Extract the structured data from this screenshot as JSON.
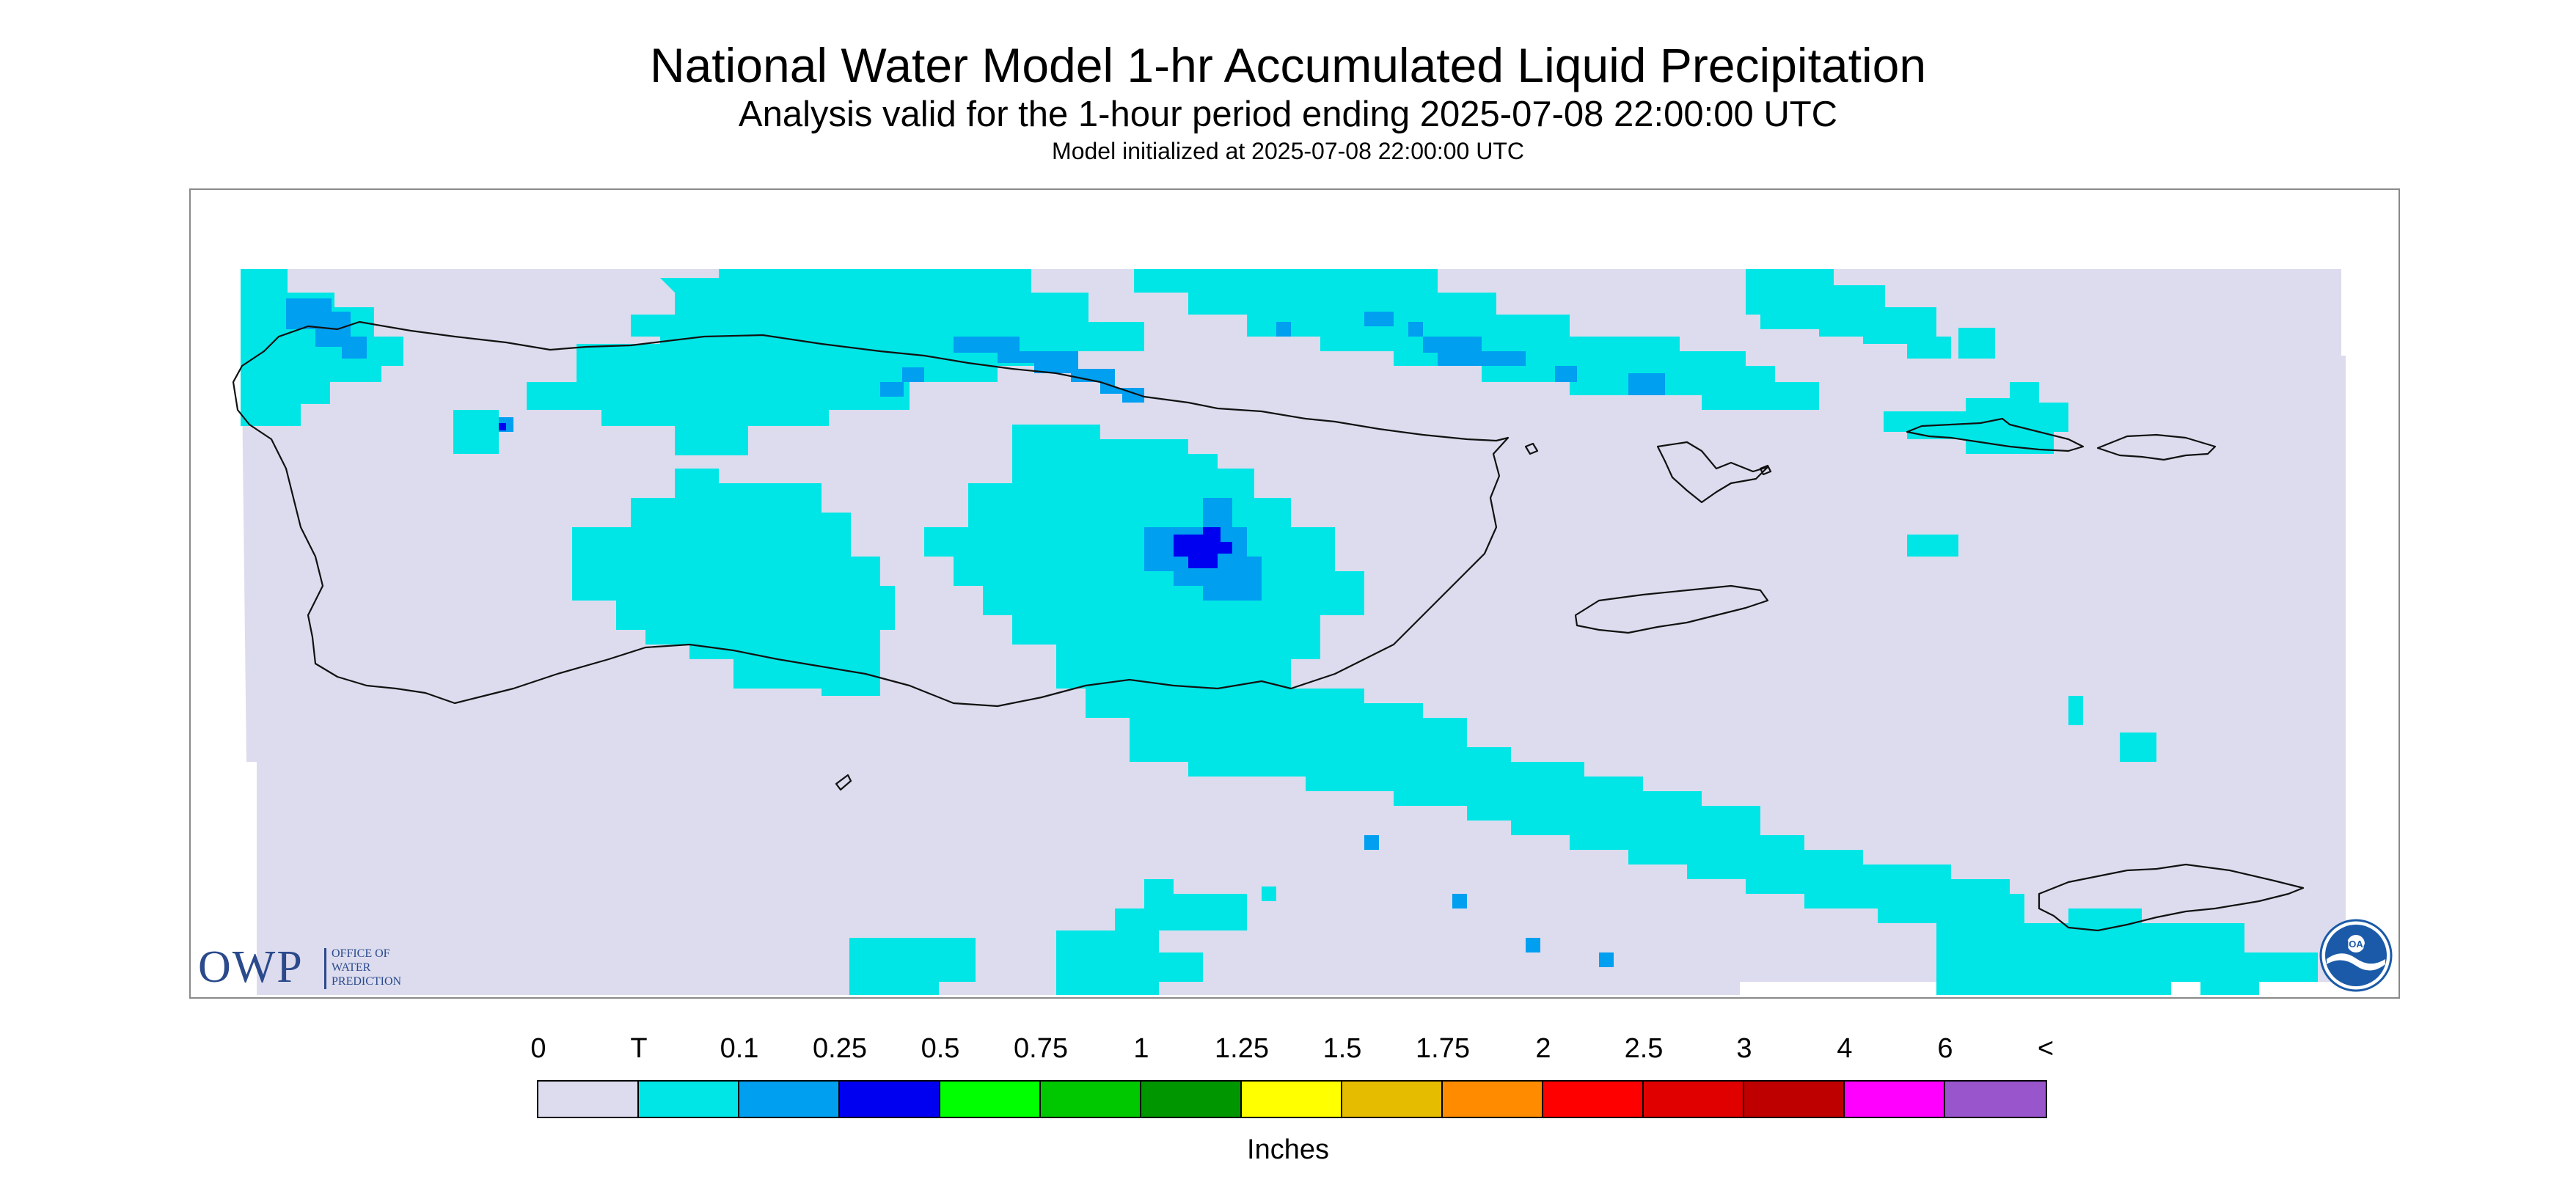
{
  "title": "National Water Model 1-hr Accumulated Liquid Precipitation",
  "subtitle": "Analysis valid for the 1-hour period ending 2025-07-08 22:00:00 UTC",
  "init_line": "Model initialized at 2025-07-08 22:00:00 UTC",
  "colors": {
    "background": "#dcdcee",
    "trace": "#00e6e6",
    "in_0_1": "#009ff0",
    "in_0_25": "#0000f0",
    "coastline": "#111111",
    "frame": "#8a8a8a"
  },
  "logos": {
    "owp": {
      "big": "OWP",
      "line1": "OFFICE OF",
      "line2": "WATER",
      "line3": "PREDICTION"
    },
    "noaa": {
      "text": "NOAA"
    }
  },
  "legend": {
    "labels": [
      "0",
      "T",
      "0.1",
      "0.25",
      "0.5",
      "0.75",
      "1",
      "1.25",
      "1.5",
      "1.75",
      "2",
      "2.5",
      "3",
      "4",
      "6",
      "<"
    ],
    "colors": [
      "#dcdcee",
      "#00e6e6",
      "#009ff0",
      "#0000f0",
      "#00ff00",
      "#00c800",
      "#009600",
      "#ffff00",
      "#e6bc00",
      "#ff8c00",
      "#ff0000",
      "#e00000",
      "#be0000",
      "#ff00ff",
      "#9955cc"
    ],
    "units": "Inches"
  },
  "map": {
    "region_icons": [
      "puerto-rico-outline",
      "vieques-outline",
      "culebra-outline",
      "virgin-islands-outline",
      "st-croix-outline"
    ]
  }
}
